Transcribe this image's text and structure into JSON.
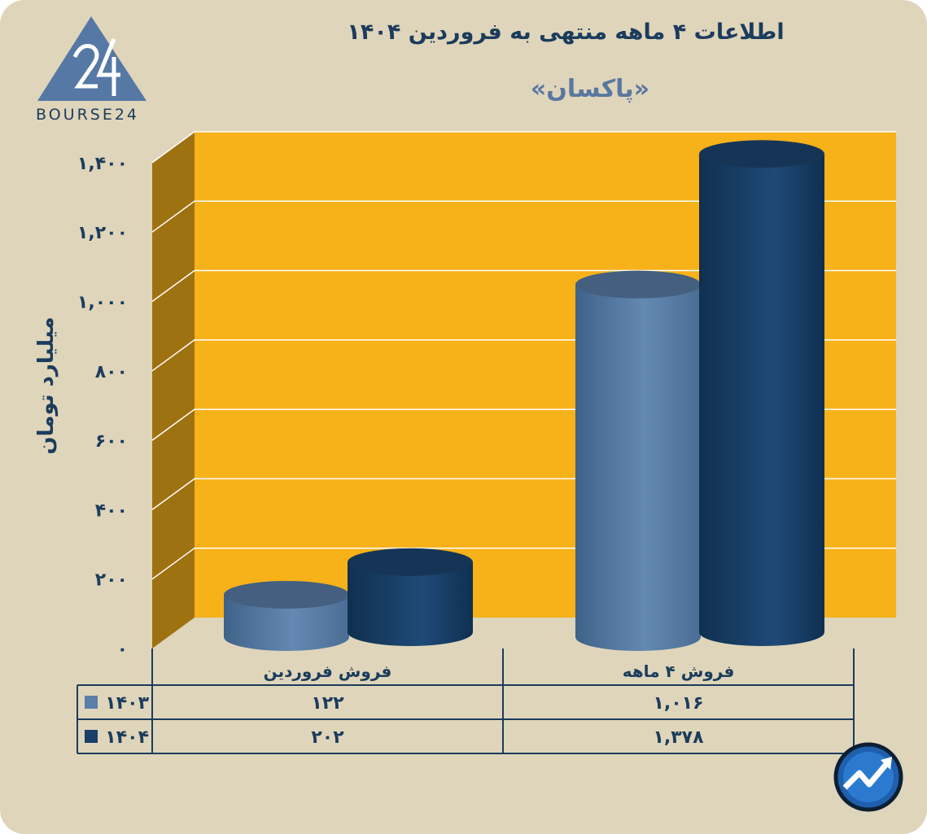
{
  "header": {
    "title": "اطلاعات ۴ ماهه منتهی به فروردین ۱۴۰۴",
    "subtitle": "«پاکسان»"
  },
  "logo": {
    "text": "BOURSE24"
  },
  "colors": {
    "background": "#dfd5bb",
    "plot_back": "#f7b119",
    "plot_side": "#9e7210",
    "series_1403": "#5a7fa8",
    "series_1404": "#1a3f68",
    "text": "#1b3c5c"
  },
  "chart_data": {
    "type": "bar",
    "title": "اطلاعات ۴ ماهه منتهی به فروردین ۱۴۰۴",
    "subtitle": "«پاکسان»",
    "ylabel": "میلیارد تومان",
    "ylim": [
      0,
      1400
    ],
    "yticks": [
      0,
      200,
      400,
      600,
      800,
      1000,
      1200,
      1400
    ],
    "ytick_labels": [
      "۰",
      "۲۰۰",
      "۴۰۰",
      "۶۰۰",
      "۸۰۰",
      "۱,۰۰۰",
      "۱,۲۰۰",
      "۱,۴۰۰"
    ],
    "categories": [
      "فروش فروردین",
      "فروش ۴ ماهه"
    ],
    "series": [
      {
        "name": "۱۴۰۳",
        "values": [
          122,
          1016
        ],
        "value_labels": [
          "۱۲۲",
          "۱,۰۱۶"
        ],
        "color": "#5a7fa8"
      },
      {
        "name": "۱۴۰۴",
        "values": [
          202,
          1378
        ],
        "value_labels": [
          "۲۰۲",
          "۱,۳۷۸"
        ],
        "color": "#1a3f68"
      }
    ],
    "grid": true,
    "legend": "data-table-left",
    "style": "3d-cylinder"
  }
}
